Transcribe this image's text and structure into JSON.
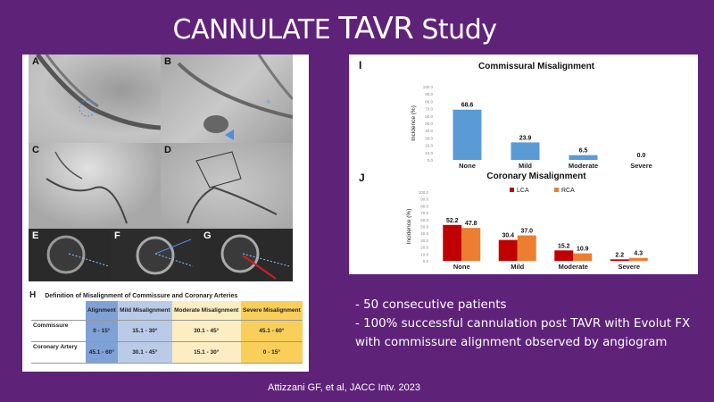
{
  "slide": {
    "title_part1": "CANNULATE ",
    "title_part2": "TAVR",
    "title_part3": " Study",
    "bullets": [
      "- 50 consecutive patients",
      "- 100% successful cannulation post TAVR with Evolut FX with commissure alignment observed by angiogram"
    ],
    "citation": "Attizzani GF, et al, JACC Intv. 2023"
  },
  "images": {
    "labels": [
      "A",
      "B",
      "C",
      "D",
      "E",
      "F",
      "G"
    ]
  },
  "definition_table": {
    "panel_label": "H",
    "title": "Definition of Misalignment of Commissure and Coronary Arteries",
    "headers": [
      "",
      "Alignment",
      "Mild Misalignment",
      "Moderate Misalignment",
      "Severe Misalignment"
    ],
    "rows": [
      {
        "label": "Commissure",
        "values": [
          "0 - 15°",
          "15.1 - 30°",
          "30.1 - 45°",
          "45.1 - 60°"
        ]
      },
      {
        "label": "Coronary Artery",
        "values": [
          "45.1 - 60°",
          "30.1 - 45°",
          "15.1 - 30°",
          "0 - 15°"
        ]
      }
    ]
  },
  "chart_data": [
    {
      "panel_label": "I",
      "type": "bar",
      "title": "Commissural Misalignment",
      "xlabel": "",
      "ylabel": "Incidence (%)",
      "ylim": [
        0,
        100
      ],
      "yticks": [
        "0.0",
        "10.0",
        "20.0",
        "30.0",
        "40.0",
        "50.0",
        "60.0",
        "70.0",
        "80.0",
        "90.0",
        "100.0"
      ],
      "categories": [
        "None",
        "Mild",
        "Moderate",
        "Severe"
      ],
      "values": [
        68.6,
        23.9,
        6.5,
        0.0
      ],
      "value_labels": [
        "68.6",
        "23.9",
        "6.5",
        "0.0"
      ],
      "color": "#5b9bd5"
    },
    {
      "panel_label": "J",
      "type": "bar",
      "title": "Coronary Misalignment",
      "xlabel": "",
      "ylabel": "Incidence (%)",
      "ylim": [
        0,
        100
      ],
      "yticks": [
        "0.0",
        "10.0",
        "20.0",
        "30.0",
        "40.0",
        "50.0",
        "60.0",
        "70.0",
        "80.0",
        "90.0",
        "100.0"
      ],
      "categories": [
        "None",
        "Mild",
        "Moderate",
        "Severe"
      ],
      "legend": "top",
      "series": [
        {
          "name": "LCA",
          "values": [
            52.2,
            30.4,
            15.2,
            2.2
          ],
          "value_labels": [
            "52.2",
            "30.4",
            "15.2",
            "2.2"
          ],
          "color": "#c00000"
        },
        {
          "name": "RCA",
          "values": [
            47.8,
            37.0,
            10.9,
            4.3
          ],
          "value_labels": [
            "47.8",
            "37.0",
            "10.9",
            "4.3"
          ],
          "color": "#ed7d31"
        }
      ]
    }
  ]
}
